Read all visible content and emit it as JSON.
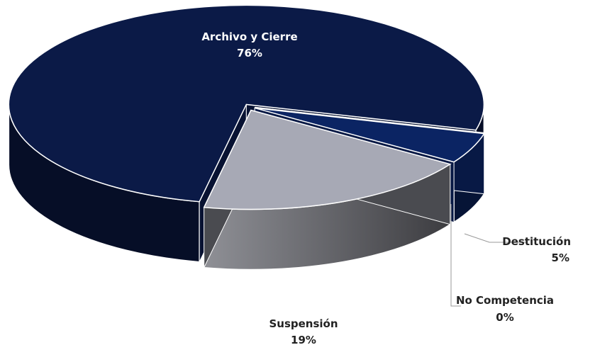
{
  "chart_data": {
    "type": "pie3d",
    "categories": [
      "Archivo y Cierre",
      "No Competencia",
      "Destitución",
      "Suspensión"
    ],
    "values": [
      76,
      0,
      5,
      19
    ],
    "value_labels": [
      "76%",
      "0%",
      "5%",
      "19%"
    ],
    "colors": [
      "#0b1a47",
      "#05070f",
      "#0b2463",
      "#a7a9b5"
    ]
  }
}
